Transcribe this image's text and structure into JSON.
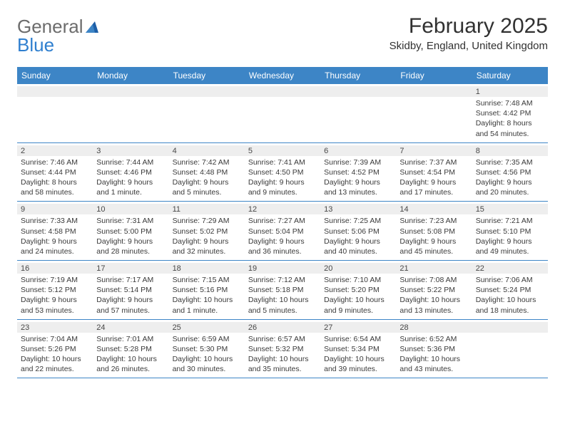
{
  "logo": {
    "part1": "General",
    "part2": "Blue"
  },
  "title": "February 2025",
  "location": "Skidby, England, United Kingdom",
  "colors": {
    "band": "#3d85c6",
    "daynum_bg": "#eeeeee",
    "border": "#3d85c6",
    "logo_gray": "#6c6c6c",
    "logo_blue": "#2f7fcf",
    "text": "#333333"
  },
  "dayHeaders": [
    "Sunday",
    "Monday",
    "Tuesday",
    "Wednesday",
    "Thursday",
    "Friday",
    "Saturday"
  ],
  "weeks": [
    [
      null,
      null,
      null,
      null,
      null,
      null,
      {
        "n": "1",
        "sunrise": "7:48 AM",
        "sunset": "4:42 PM",
        "daylight": "8 hours and 54 minutes."
      }
    ],
    [
      {
        "n": "2",
        "sunrise": "7:46 AM",
        "sunset": "4:44 PM",
        "daylight": "8 hours and 58 minutes."
      },
      {
        "n": "3",
        "sunrise": "7:44 AM",
        "sunset": "4:46 PM",
        "daylight": "9 hours and 1 minute."
      },
      {
        "n": "4",
        "sunrise": "7:42 AM",
        "sunset": "4:48 PM",
        "daylight": "9 hours and 5 minutes."
      },
      {
        "n": "5",
        "sunrise": "7:41 AM",
        "sunset": "4:50 PM",
        "daylight": "9 hours and 9 minutes."
      },
      {
        "n": "6",
        "sunrise": "7:39 AM",
        "sunset": "4:52 PM",
        "daylight": "9 hours and 13 minutes."
      },
      {
        "n": "7",
        "sunrise": "7:37 AM",
        "sunset": "4:54 PM",
        "daylight": "9 hours and 17 minutes."
      },
      {
        "n": "8",
        "sunrise": "7:35 AM",
        "sunset": "4:56 PM",
        "daylight": "9 hours and 20 minutes."
      }
    ],
    [
      {
        "n": "9",
        "sunrise": "7:33 AM",
        "sunset": "4:58 PM",
        "daylight": "9 hours and 24 minutes."
      },
      {
        "n": "10",
        "sunrise": "7:31 AM",
        "sunset": "5:00 PM",
        "daylight": "9 hours and 28 minutes."
      },
      {
        "n": "11",
        "sunrise": "7:29 AM",
        "sunset": "5:02 PM",
        "daylight": "9 hours and 32 minutes."
      },
      {
        "n": "12",
        "sunrise": "7:27 AM",
        "sunset": "5:04 PM",
        "daylight": "9 hours and 36 minutes."
      },
      {
        "n": "13",
        "sunrise": "7:25 AM",
        "sunset": "5:06 PM",
        "daylight": "9 hours and 40 minutes."
      },
      {
        "n": "14",
        "sunrise": "7:23 AM",
        "sunset": "5:08 PM",
        "daylight": "9 hours and 45 minutes."
      },
      {
        "n": "15",
        "sunrise": "7:21 AM",
        "sunset": "5:10 PM",
        "daylight": "9 hours and 49 minutes."
      }
    ],
    [
      {
        "n": "16",
        "sunrise": "7:19 AM",
        "sunset": "5:12 PM",
        "daylight": "9 hours and 53 minutes."
      },
      {
        "n": "17",
        "sunrise": "7:17 AM",
        "sunset": "5:14 PM",
        "daylight": "9 hours and 57 minutes."
      },
      {
        "n": "18",
        "sunrise": "7:15 AM",
        "sunset": "5:16 PM",
        "daylight": "10 hours and 1 minute."
      },
      {
        "n": "19",
        "sunrise": "7:12 AM",
        "sunset": "5:18 PM",
        "daylight": "10 hours and 5 minutes."
      },
      {
        "n": "20",
        "sunrise": "7:10 AM",
        "sunset": "5:20 PM",
        "daylight": "10 hours and 9 minutes."
      },
      {
        "n": "21",
        "sunrise": "7:08 AM",
        "sunset": "5:22 PM",
        "daylight": "10 hours and 13 minutes."
      },
      {
        "n": "22",
        "sunrise": "7:06 AM",
        "sunset": "5:24 PM",
        "daylight": "10 hours and 18 minutes."
      }
    ],
    [
      {
        "n": "23",
        "sunrise": "7:04 AM",
        "sunset": "5:26 PM",
        "daylight": "10 hours and 22 minutes."
      },
      {
        "n": "24",
        "sunrise": "7:01 AM",
        "sunset": "5:28 PM",
        "daylight": "10 hours and 26 minutes."
      },
      {
        "n": "25",
        "sunrise": "6:59 AM",
        "sunset": "5:30 PM",
        "daylight": "10 hours and 30 minutes."
      },
      {
        "n": "26",
        "sunrise": "6:57 AM",
        "sunset": "5:32 PM",
        "daylight": "10 hours and 35 minutes."
      },
      {
        "n": "27",
        "sunrise": "6:54 AM",
        "sunset": "5:34 PM",
        "daylight": "10 hours and 39 minutes."
      },
      {
        "n": "28",
        "sunrise": "6:52 AM",
        "sunset": "5:36 PM",
        "daylight": "10 hours and 43 minutes."
      },
      null
    ]
  ],
  "labels": {
    "sunrise": "Sunrise: ",
    "sunset": "Sunset: ",
    "daylight": "Daylight: "
  }
}
